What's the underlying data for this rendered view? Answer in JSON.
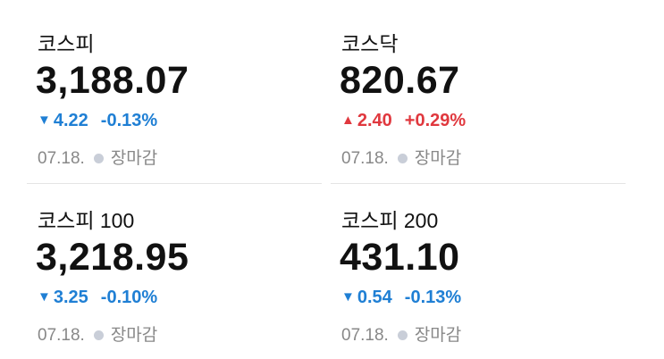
{
  "colors": {
    "down": "#1f7fd4",
    "up": "#e0383e"
  },
  "indices": [
    {
      "name": "코스피",
      "price": "3,188.07",
      "direction": "down",
      "arrow": "▼",
      "change": "4.22",
      "percent": "-0.13%",
      "date": "07.18.",
      "status": "장마감"
    },
    {
      "name": "코스닥",
      "price": "820.67",
      "direction": "up",
      "arrow": "▲",
      "change": "2.40",
      "percent": "+0.29%",
      "date": "07.18.",
      "status": "장마감"
    },
    {
      "name": "코스피 100",
      "price": "3,218.95",
      "direction": "down",
      "arrow": "▼",
      "change": "3.25",
      "percent": "-0.10%",
      "date": "07.18.",
      "status": "장마감"
    },
    {
      "name": "코스피 200",
      "price": "431.10",
      "direction": "down",
      "arrow": "▼",
      "change": "0.54",
      "percent": "-0.13%",
      "date": "07.18.",
      "status": "장마감"
    }
  ]
}
